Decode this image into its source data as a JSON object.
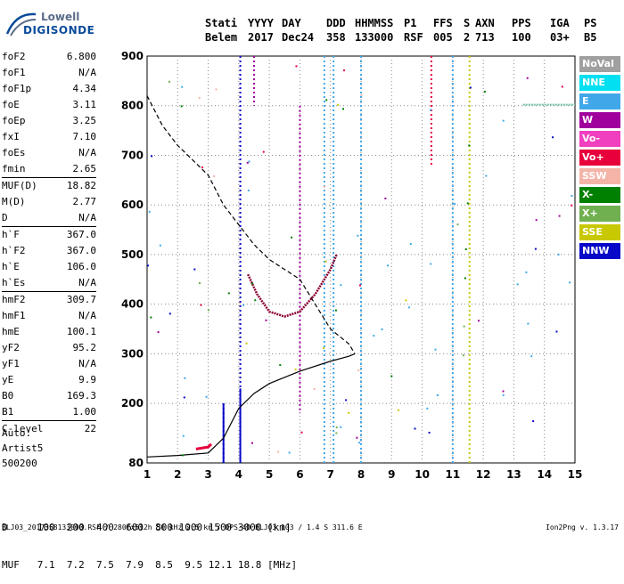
{
  "logo": {
    "line1": "Lowell",
    "line2": "DIGISONDE"
  },
  "header": {
    "row1": [
      {
        "label": "Stati",
        "value": "Belem"
      },
      {
        "label": "YYYY",
        "value": "2017"
      },
      {
        "label": "DAY",
        "value": "Dec24"
      },
      {
        "label": "DDD",
        "value": "358"
      },
      {
        "label": "HHMMSS",
        "value": "133000"
      },
      {
        "label": "P1",
        "value": "RSF"
      },
      {
        "label": "FFS",
        "value": "005"
      },
      {
        "label": "S",
        "value": "2"
      },
      {
        "label": "AXN",
        "value": "713"
      },
      {
        "label": "PPS",
        "value": "100"
      },
      {
        "label": "IGA",
        "value": "03+"
      },
      {
        "label": "PS",
        "value": "B5"
      }
    ]
  },
  "params": {
    "group1": [
      {
        "name": "foF2",
        "value": "6.800"
      },
      {
        "name": "foF1",
        "value": "N/A"
      },
      {
        "name": "foF1p",
        "value": "4.34"
      },
      {
        "name": "foE",
        "value": "3.11"
      },
      {
        "name": "foEp",
        "value": "3.25"
      },
      {
        "name": "fxI",
        "value": "7.10"
      },
      {
        "name": "foEs",
        "value": "N/A"
      },
      {
        "name": "fmin",
        "value": "2.65"
      }
    ],
    "group2": [
      {
        "name": "MUF(D)",
        "value": "18.82"
      },
      {
        "name": "M(D)",
        "value": "2.77"
      },
      {
        "name": "D",
        "value": "N/A"
      }
    ],
    "group3": [
      {
        "name": "h`F",
        "value": "367.0"
      },
      {
        "name": "h`F2",
        "value": "367.0"
      },
      {
        "name": "h`E",
        "value": "106.0"
      },
      {
        "name": "h`Es",
        "value": "N/A"
      }
    ],
    "group4": [
      {
        "name": "hmF2",
        "value": "309.7"
      },
      {
        "name": "hmF1",
        "value": "N/A"
      },
      {
        "name": "hmE",
        "value": "100.1"
      },
      {
        "name": "yF2",
        "value": "95.2"
      },
      {
        "name": "yF1",
        "value": "N/A"
      },
      {
        "name": "yE",
        "value": "9.9"
      },
      {
        "name": "B0",
        "value": "169.3"
      },
      {
        "name": "B1",
        "value": "1.00"
      }
    ],
    "group5": [
      {
        "name": "C-level",
        "value": "22"
      }
    ]
  },
  "auto": {
    "line1": "Auto:",
    "line2": "Artist5",
    "line3": "500200"
  },
  "bottom_table": {
    "row1": "D     100  200  400  600  800 1000 1500 3000 [km]",
    "row2": "MUF   7.1  7.2  7.5  7.9  8.5  9.5 12.1 18.8 [MHz]"
  },
  "footer": {
    "left": "BLJ03_2017358133000.RSF / 280fx512h 50 kHz 2.5 km / DPS-4D BLJ03 103 / 1.4 S 311.6 E",
    "right": "Ion2Png v. 1.3.17"
  },
  "legend": [
    {
      "label": "NoVal",
      "color": "#a0a0a0"
    },
    {
      "label": "NNE",
      "color": "#00e0f0"
    },
    {
      "label": "E",
      "color": "#40a8e8"
    },
    {
      "label": "W",
      "color": "#a0009c"
    },
    {
      "label": "Vo-",
      "color": "#f040c0"
    },
    {
      "label": "Vo+",
      "color": "#e8003c"
    },
    {
      "label": "SSW",
      "color": "#f4b4a8"
    },
    {
      "label": "X-",
      "color": "#008000"
    },
    {
      "label": "X+",
      "color": "#70b050"
    },
    {
      "label": "SSE",
      "color": "#c8c800"
    },
    {
      "label": "NNW",
      "color": "#0808c8"
    }
  ],
  "chart_data": {
    "type": "scatter",
    "xlim": [
      1,
      15
    ],
    "ylim": [
      80,
      900
    ],
    "x_ticks": [
      "1",
      "2",
      "3",
      "4",
      "5",
      "6",
      "7",
      "8",
      "9",
      "10",
      "11",
      "12",
      "13",
      "14",
      "15"
    ],
    "y_ticks": [
      "80",
      "200",
      "300",
      "400",
      "500",
      "600",
      "700",
      "800",
      "900"
    ],
    "grid": true,
    "profile_dashed": [
      [
        1,
        820
      ],
      [
        1.5,
        760
      ],
      [
        2,
        720
      ],
      [
        3,
        660
      ],
      [
        3.5,
        600
      ],
      [
        4,
        560
      ],
      [
        4.5,
        520
      ],
      [
        5,
        490
      ],
      [
        5.5,
        470
      ],
      [
        6,
        450
      ],
      [
        6.5,
        400
      ],
      [
        7,
        350
      ],
      [
        7.6,
        320
      ],
      [
        7.8,
        300
      ]
    ],
    "profile_solid": [
      [
        1,
        92
      ],
      [
        2,
        95
      ],
      [
        3,
        100
      ],
      [
        3.5,
        130
      ],
      [
        4,
        190
      ],
      [
        4.5,
        220
      ],
      [
        5,
        240
      ],
      [
        6,
        265
      ],
      [
        7,
        285
      ],
      [
        7.6,
        295
      ],
      [
        7.8,
        300
      ]
    ],
    "trace_f2": [
      [
        4.3,
        460
      ],
      [
        4.6,
        420
      ],
      [
        5,
        385
      ],
      [
        5.5,
        375
      ],
      [
        6,
        385
      ],
      [
        6.5,
        420
      ],
      [
        7,
        470
      ],
      [
        7.2,
        500
      ]
    ],
    "trace_e": [
      [
        2.6,
        108
      ],
      [
        2.8,
        110
      ],
      [
        3,
        112
      ],
      [
        3.1,
        118
      ]
    ],
    "vertical_lines": [
      {
        "x": 3.5,
        "y": [
          80,
          200
        ],
        "color": "#0808c8"
      },
      {
        "x": 4.05,
        "y": [
          80,
          900
        ],
        "color": "#0808c8"
      },
      {
        "x": 4.5,
        "y": [
          800,
          900
        ],
        "color": "#a0009c"
      },
      {
        "x": 6.0,
        "y": [
          180,
          800
        ],
        "color": "#a0009c"
      },
      {
        "x": 6.8,
        "y": [
          80,
          900
        ],
        "color": "#40a8e8"
      },
      {
        "x": 7.1,
        "y": [
          80,
          900
        ],
        "color": "#40a8e8"
      },
      {
        "x": 8.0,
        "y": [
          80,
          900
        ],
        "color": "#40a8e8"
      },
      {
        "x": 10.3,
        "y": [
          680,
          900
        ],
        "color": "#e8003c"
      },
      {
        "x": 11.0,
        "y": [
          80,
          900
        ],
        "color": "#40a8e8"
      },
      {
        "x": 11.55,
        "y": [
          80,
          900
        ],
        "color": "#c8c800"
      }
    ]
  }
}
